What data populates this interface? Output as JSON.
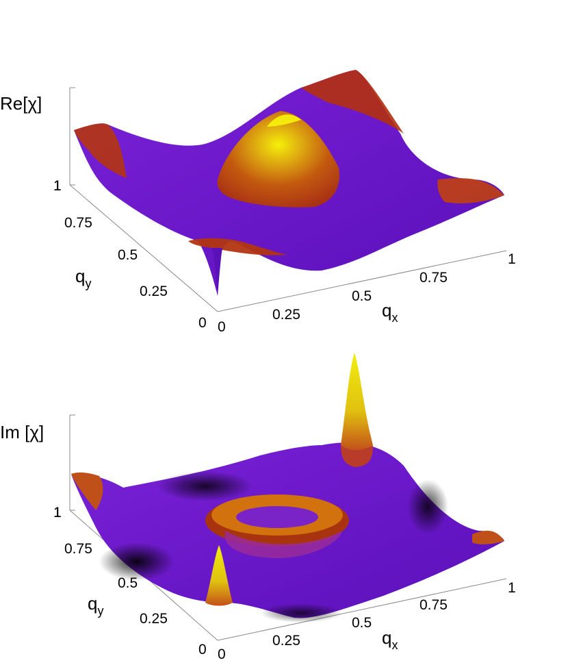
{
  "chart_data": [
    {
      "type": "surface",
      "zlabel": "Re[χ]",
      "xlabel_main": "q",
      "xlabel_sub": "x",
      "ylabel_main": "q",
      "ylabel_sub": "y",
      "xticks": [
        "0",
        "0.25",
        "0.5",
        "0.75",
        "1"
      ],
      "yticks": [
        "0",
        "0.25",
        "0.5",
        "0.75",
        "1"
      ],
      "xlim": [
        0,
        1
      ],
      "ylim": [
        0,
        1
      ],
      "colormap": [
        "#000000",
        "#6a1bd0",
        "#8a26cc",
        "#c2331a",
        "#e6c010",
        "#f2f20a"
      ],
      "features": "central yellow dome at (0.5,0.5), red ridges at corners, purple trough in between, sharp downward spike near (0,0.25)"
    },
    {
      "type": "surface",
      "zlabel": "Im [χ]",
      "xlabel_main": "q",
      "xlabel_sub": "x",
      "ylabel_main": "q",
      "ylabel_sub": "y",
      "xticks": [
        "0",
        "0.25",
        "0.5",
        "0.75",
        "1"
      ],
      "yticks": [
        "0",
        "0.25",
        "0.5",
        "0.75",
        "1"
      ],
      "xlim": [
        0,
        1
      ],
      "ylim": [
        0,
        1
      ],
      "colormap": [
        "#000000",
        "#6a1bd0",
        "#8a26cc",
        "#c2331a",
        "#e6c010",
        "#f2f20a"
      ],
      "features": "red ring around (0.5,0.5), sharp yellow peaks near (0,0.25) and (1,1), dark valleys near edges"
    }
  ]
}
